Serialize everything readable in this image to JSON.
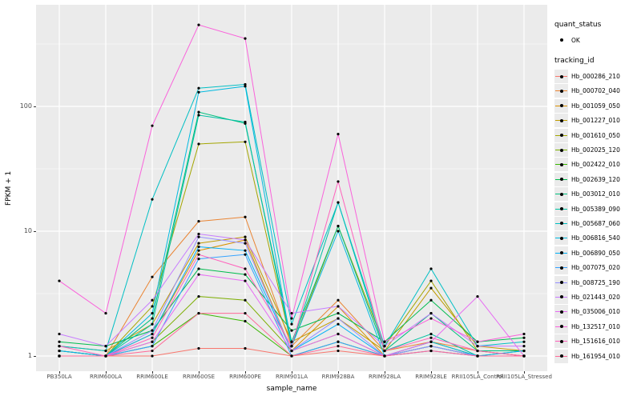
{
  "figure": {
    "background": "#FFFFFF",
    "panel_background": "#EBEBEB",
    "grid_color": "#FFFFFF"
  },
  "axes": {
    "x_title": "sample_name",
    "y_title": "FPKM + 1",
    "y_ticks": [
      {
        "label": "1",
        "value": 1
      },
      {
        "label": "10",
        "value": 10
      },
      {
        "label": "100",
        "value": 100
      }
    ]
  },
  "legend": {
    "quant_status_title": "quant_status",
    "quant_status_items": [
      {
        "label": "OK",
        "marker": "point"
      }
    ],
    "tracking_id_title": "tracking_id"
  },
  "chart_data": {
    "type": "line",
    "x_type": "categorical",
    "y_scale": "log10",
    "title": "",
    "xlabel": "sample_name",
    "ylabel": "FPKM + 1",
    "ylim": [
      1,
      500
    ],
    "y_major_ticks": [
      1,
      10,
      100
    ],
    "y_minor_ticks": [
      3.162,
      31.62,
      316.2
    ],
    "grid": true,
    "legend_position": "right",
    "point_color": "#000000",
    "categories": [
      "PB350LA",
      "RRIM600LA",
      "RRIM600LE",
      "RRIM600SE",
      "RRIM600PE",
      "RRIM901LA",
      "RRIM928BA",
      "RRIM928LA",
      "RRIM928LE",
      "RRII105LA_Control",
      "RRII105LA_Stressed"
    ],
    "series": [
      {
        "name": "Hb_000286_210",
        "color": "#F8766D",
        "values": [
          1,
          1,
          1,
          1.15,
          1.15,
          1,
          1.1,
          1,
          1.1,
          1,
          1
        ]
      },
      {
        "name": "Hb_000702_040",
        "color": "#EA8331",
        "values": [
          1.1,
          1,
          4.3,
          12,
          13,
          1.2,
          2.8,
          1.1,
          1.3,
          1.1,
          1
        ]
      },
      {
        "name": "Hb_001059_050",
        "color": "#D89000",
        "values": [
          1,
          1,
          1.5,
          7,
          8.5,
          1.1,
          2.5,
          1,
          1.2,
          1,
          1
        ]
      },
      {
        "name": "Hb_001227_010",
        "color": "#C09B00",
        "values": [
          1.2,
          1.1,
          1.8,
          8,
          9,
          1.3,
          2,
          1.1,
          3.5,
          1.2,
          1.1
        ]
      },
      {
        "name": "Hb_001610_050",
        "color": "#A3A500",
        "values": [
          1,
          1,
          2.5,
          50,
          52,
          1.2,
          11,
          1.2,
          4,
          1.1,
          1
        ]
      },
      {
        "name": "Hb_002025_120",
        "color": "#7CAE00",
        "values": [
          1.1,
          1,
          1.3,
          3,
          2.8,
          1.1,
          1.5,
          1,
          1.3,
          1,
          1.1
        ]
      },
      {
        "name": "Hb_002422_010",
        "color": "#39B600",
        "values": [
          1,
          1,
          1.2,
          2.2,
          1.9,
          1,
          1.3,
          1,
          1.2,
          1,
          1
        ]
      },
      {
        "name": "Hb_002639_120",
        "color": "#00BB4E",
        "values": [
          1.3,
          1.2,
          1.6,
          5,
          4.5,
          1.6,
          2.2,
          1.3,
          2.8,
          1.3,
          1.4
        ]
      },
      {
        "name": "Hb_003012_010",
        "color": "#00BF7D",
        "values": [
          1.1,
          1,
          2,
          90,
          73,
          1.3,
          11,
          1.1,
          2.2,
          1.1,
          1.1
        ]
      },
      {
        "name": "Hb_005389_090",
        "color": "#00C1A3",
        "values": [
          1,
          1,
          1.8,
          85,
          75,
          1.2,
          17,
          1.1,
          1.5,
          1,
          1
        ]
      },
      {
        "name": "Hb_005687_060",
        "color": "#00BFC4",
        "values": [
          1.2,
          1.1,
          18,
          140,
          150,
          1.8,
          17,
          1.2,
          5,
          1.2,
          1.3
        ]
      },
      {
        "name": "Hb_006816_540",
        "color": "#00BAE0",
        "values": [
          1,
          1,
          2.2,
          130,
          145,
          1.2,
          10,
          1,
          1.3,
          1,
          1
        ]
      },
      {
        "name": "Hb_006890_050",
        "color": "#00B0F6",
        "values": [
          1.1,
          1,
          1.5,
          7.5,
          7,
          1.1,
          1.8,
          1,
          1.2,
          1,
          1.1
        ]
      },
      {
        "name": "Hb_007075_020",
        "color": "#35A2FF",
        "values": [
          1,
          1,
          1.2,
          6,
          6.5,
          1,
          1.3,
          1,
          1.1,
          1,
          1
        ]
      },
      {
        "name": "Hb_008725_190",
        "color": "#9590FF",
        "values": [
          1,
          1,
          1.6,
          9,
          8,
          1.1,
          2,
          1,
          1.2,
          1,
          1
        ]
      },
      {
        "name": "Hb_021443_020",
        "color": "#C77CFF",
        "values": [
          1.5,
          1.2,
          2.8,
          9.5,
          8.5,
          2.2,
          2.5,
          1.2,
          2.2,
          1.2,
          1.2
        ]
      },
      {
        "name": "Hb_035006_010",
        "color": "#E76BF3",
        "values": [
          1,
          1,
          1.3,
          4.5,
          4,
          1.1,
          1.5,
          1,
          1.3,
          3,
          1
        ]
      },
      {
        "name": "Hb_132517_010",
        "color": "#FA62DB",
        "values": [
          4,
          2.2,
          70,
          450,
          350,
          2,
          60,
          1.3,
          2,
          1.3,
          1.5
        ]
      },
      {
        "name": "Hb_151616_010",
        "color": "#FF62BC",
        "values": [
          1.2,
          1,
          1.4,
          6.5,
          5,
          1.2,
          25,
          1.1,
          1.4,
          1.1,
          1
        ]
      },
      {
        "name": "Hb_161954_010",
        "color": "#FF6A98",
        "values": [
          1,
          1,
          1.1,
          2.2,
          2.2,
          1,
          1.2,
          1,
          1.1,
          1,
          1
        ]
      }
    ]
  }
}
